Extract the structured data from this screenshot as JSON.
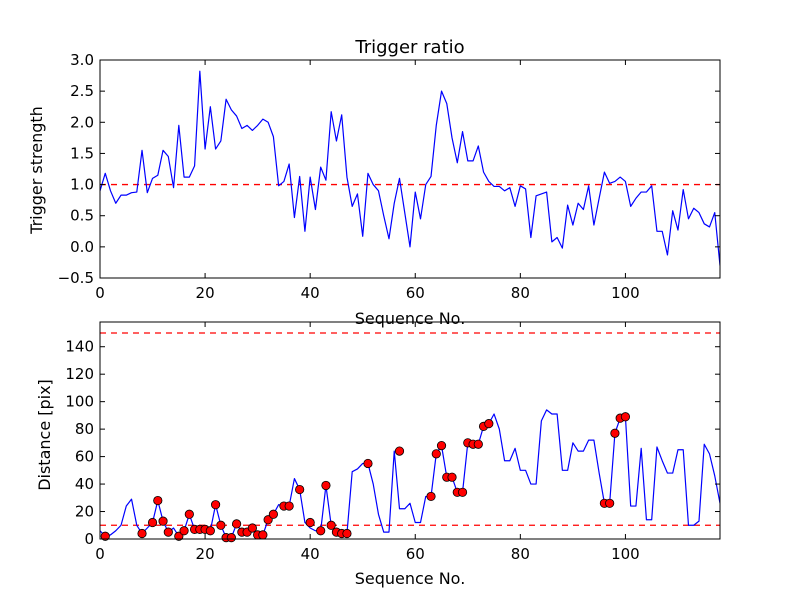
{
  "chart_data": [
    {
      "type": "line",
      "title": "Trigger ratio",
      "xlabel": "Sequence No.",
      "ylabel": "Trigger strength",
      "xlim": [
        0,
        118
      ],
      "ylim": [
        -0.5,
        3.0
      ],
      "xticks": [
        "0",
        "20",
        "40",
        "60",
        "80",
        "100"
      ],
      "xtick_values": [
        0,
        20,
        40,
        60,
        80,
        100
      ],
      "yticks": [
        "−0.5",
        "0.0",
        "0.5",
        "1.0",
        "1.5",
        "2.0",
        "2.5",
        "3.0"
      ],
      "ytick_values": [
        -0.5,
        0.0,
        0.5,
        1.0,
        1.5,
        2.0,
        2.5,
        3.0
      ],
      "threshold": 1.0,
      "threshold_color": "#ff0000",
      "series": [
        {
          "name": "trigger strength",
          "color": "#0000ff",
          "x_start": 0,
          "values": [
            0.9,
            1.18,
            0.9,
            0.7,
            0.83,
            0.83,
            0.87,
            0.88,
            1.55,
            0.87,
            1.1,
            1.15,
            1.55,
            1.45,
            0.95,
            1.95,
            1.12,
            1.12,
            1.3,
            2.82,
            1.57,
            2.25,
            1.57,
            1.7,
            2.37,
            2.2,
            2.1,
            1.9,
            1.95,
            1.87,
            1.95,
            2.05,
            2.0,
            1.77,
            0.98,
            1.05,
            1.33,
            0.47,
            1.13,
            0.25,
            1.12,
            0.6,
            1.28,
            1.07,
            2.17,
            1.7,
            2.12,
            1.12,
            0.65,
            0.85,
            0.17,
            1.18,
            1.0,
            0.9,
            0.5,
            0.13,
            0.7,
            1.1,
            0.55,
            0.0,
            0.88,
            0.45,
            1.0,
            1.13,
            1.95,
            2.5,
            2.3,
            1.75,
            1.35,
            1.85,
            1.38,
            1.38,
            1.62,
            1.2,
            1.05,
            0.97,
            0.97,
            0.9,
            0.95,
            0.65,
            0.98,
            0.93,
            0.15,
            0.82,
            0.85,
            0.88,
            0.08,
            0.15,
            -0.02,
            0.67,
            0.35,
            0.7,
            0.6,
            0.98,
            0.35,
            0.78,
            1.2,
            1.02,
            1.05,
            1.12,
            1.05,
            0.65,
            0.78,
            0.88,
            0.88,
            0.98,
            0.25,
            0.25,
            -0.13,
            0.58,
            0.27,
            0.92,
            0.45,
            0.62,
            0.55,
            0.37,
            0.32,
            0.55,
            -0.3
          ]
        }
      ]
    },
    {
      "type": "line",
      "title": "",
      "xlabel": "Sequence No.",
      "ylabel": "Distance [pix]",
      "xlim": [
        0,
        118
      ],
      "ylim": [
        0,
        158
      ],
      "xticks": [
        "0",
        "20",
        "40",
        "60",
        "80",
        "100"
      ],
      "xtick_values": [
        0,
        20,
        40,
        60,
        80,
        100
      ],
      "yticks": [
        "0",
        "20",
        "40",
        "60",
        "80",
        "100",
        "120",
        "140"
      ],
      "ytick_values": [
        0,
        20,
        40,
        60,
        80,
        100,
        120,
        140
      ],
      "thresholds": [
        10,
        150
      ],
      "threshold_color": "#ff0000",
      "series": [
        {
          "name": "distance",
          "color": "#0000ff",
          "x_start": 0,
          "values": [
            6,
            2,
            3,
            6,
            10,
            24,
            29,
            10,
            4,
            8,
            12,
            28,
            13,
            5,
            8,
            2,
            6,
            18,
            7,
            7,
            7,
            6,
            25,
            10,
            1,
            1,
            11,
            5,
            5,
            8,
            3,
            3,
            14,
            18,
            25,
            24,
            24,
            44,
            36,
            12,
            8,
            6,
            6,
            39,
            10,
            5,
            4,
            4,
            49,
            51,
            55,
            55,
            40,
            18,
            5,
            5,
            64,
            22,
            22,
            26,
            12,
            12,
            31,
            31,
            62,
            68,
            45,
            45,
            34,
            34,
            70,
            69,
            69,
            82,
            84,
            91,
            80,
            57,
            57,
            66,
            50,
            50,
            40,
            40,
            86,
            94,
            91,
            91,
            50,
            50,
            70,
            64,
            64,
            72,
            72,
            48,
            26,
            26,
            77,
            88,
            89,
            24,
            24,
            66,
            14,
            14,
            67,
            57,
            48,
            48,
            65,
            65,
            10,
            10,
            13,
            69,
            62,
            46,
            26
          ]
        }
      ],
      "markers": {
        "name": "triggered",
        "color": "#ff0000",
        "x": [
          1,
          8,
          10,
          11,
          12,
          13,
          15,
          16,
          17,
          18,
          19,
          20,
          21,
          22,
          23,
          24,
          25,
          26,
          27,
          28,
          29,
          30,
          31,
          32,
          33,
          35,
          36,
          38,
          40,
          42,
          43,
          44,
          45,
          46,
          47,
          51,
          57,
          63,
          64,
          65,
          66,
          67,
          68,
          69,
          70,
          71,
          72,
          73,
          74,
          96,
          97,
          98,
          99,
          100
        ],
        "y": [
          2,
          4,
          12,
          28,
          13,
          5,
          2,
          6,
          18,
          7,
          7,
          7,
          6,
          25,
          10,
          1,
          1,
          11,
          5,
          5,
          8,
          3,
          3,
          14,
          18,
          24,
          24,
          36,
          12,
          6,
          39,
          10,
          5,
          4,
          4,
          55,
          64,
          31,
          62,
          68,
          45,
          45,
          34,
          34,
          70,
          69,
          69,
          82,
          84,
          26,
          26,
          77,
          88,
          89
        ]
      }
    }
  ]
}
